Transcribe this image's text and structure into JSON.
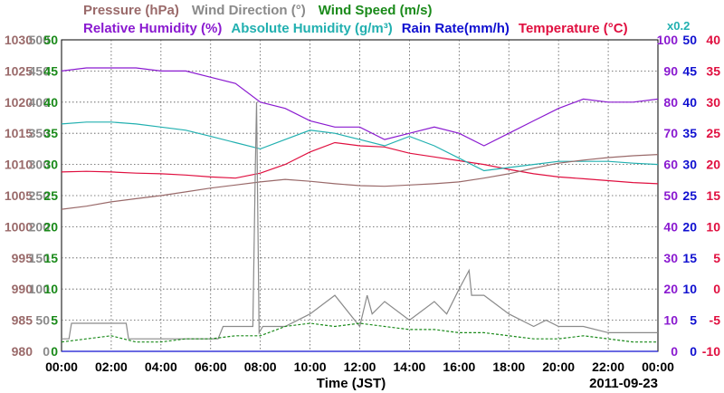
{
  "chart_data": {
    "type": "line",
    "date": "2011-09-23",
    "xlabel": "Time (JST)",
    "x_ticks": [
      "00:00",
      "02:00",
      "04:00",
      "06:00",
      "08:00",
      "10:00",
      "12:00",
      "14:00",
      "16:00",
      "18:00",
      "20:00",
      "22:00",
      "00:00"
    ],
    "x_range_hours": [
      0,
      24
    ],
    "grid": true,
    "axes_left": [
      {
        "label": "Pressure (hPa)",
        "color": "#9a6a6a",
        "range": [
          980,
          1030
        ],
        "ticks": [
          "1030",
          "1025",
          "1020",
          "1015",
          "1010",
          "1005",
          "1000",
          "995",
          "990",
          "985",
          "980"
        ]
      },
      {
        "label": "Wind Direction (°)",
        "color": "#8a8a8a",
        "range": [
          0,
          500
        ],
        "ticks": [
          "500",
          "450",
          "400",
          "350",
          "300",
          "250",
          "200",
          "150",
          "100",
          "50",
          "0"
        ]
      },
      {
        "label": "Wind Speed (m/s)",
        "color": "#1a8a1a",
        "range": [
          0,
          50
        ],
        "ticks": [
          "50",
          "45",
          "40",
          "35",
          "30",
          "25",
          "20",
          "15",
          "10",
          "5",
          "0"
        ]
      }
    ],
    "axes_right": [
      {
        "label": "Relative Humidity (%)",
        "color": "#8a1ad0",
        "range": [
          0,
          100
        ],
        "ticks": [
          "100",
          "90",
          "80",
          "70",
          "60",
          "50",
          "40",
          "30",
          "20",
          "10",
          "0"
        ]
      },
      {
        "label": "Absolute Humidity (g/m³) x0.2",
        "color": "#22b0b0",
        "range": [
          0,
          50
        ],
        "ticks": [
          "50",
          "45",
          "40",
          "35",
          "30",
          "25",
          "20",
          "15",
          "10",
          "5",
          "0"
        ]
      },
      {
        "label": "Rain Rate(mm/h)",
        "color": "#1010d0",
        "range": [
          0,
          50
        ],
        "ticks": [
          "50",
          "45",
          "40",
          "35",
          "30",
          "25",
          "20",
          "15",
          "10",
          "5",
          "0"
        ]
      },
      {
        "label": "Temperature (°C)",
        "color": "#e01040",
        "range": [
          -10,
          40
        ],
        "ticks": [
          "40",
          "35",
          "30",
          "25",
          "20",
          "15",
          "10",
          "5",
          "0",
          "-5",
          "-10"
        ]
      }
    ],
    "legend": {
      "row1": [
        {
          "text": "Pressure (hPa)",
          "color": "#9a6a6a"
        },
        {
          "text": "Wind Direction (°)",
          "color": "#8a8a8a"
        },
        {
          "text": "Wind Speed (m/s)",
          "color": "#1a8a1a"
        }
      ],
      "row2": [
        {
          "text": "Relative Humidity (%)",
          "color": "#8a1ad0"
        },
        {
          "text": "Absolute Humidity (g/m³)",
          "color": "#22b0b0"
        },
        {
          "text": "Rain Rate(mm/h)",
          "color": "#1010d0"
        },
        {
          "text": "Temperature (°C)",
          "color": "#e01040"
        }
      ],
      "suffix": {
        "text": "x0.2",
        "color": "#22b0b0"
      }
    },
    "series": [
      {
        "name": "Temperature (°C)",
        "color": "#e01040",
        "axis": "Temperature (°C)",
        "x": [
          0,
          1,
          2,
          3,
          4,
          5,
          6,
          7,
          8,
          9,
          10,
          11,
          12,
          13,
          14,
          15,
          16,
          17,
          18,
          19,
          20,
          21,
          22,
          23,
          24
        ],
        "y": [
          18.8,
          18.9,
          18.8,
          18.6,
          18.5,
          18.3,
          18.0,
          17.8,
          18.6,
          20.0,
          22.0,
          23.5,
          23.0,
          22.8,
          21.8,
          21.2,
          20.6,
          20.0,
          19.2,
          18.5,
          18.0,
          17.7,
          17.4,
          17.1,
          16.9
        ]
      },
      {
        "name": "Relative Humidity (%)",
        "color": "#8a1ad0",
        "axis": "Relative Humidity (%)",
        "x": [
          0,
          1,
          2,
          3,
          4,
          5,
          6,
          7,
          8,
          9,
          10,
          11,
          12,
          13,
          14,
          15,
          16,
          17,
          18,
          19,
          20,
          21,
          22,
          23,
          24
        ],
        "y": [
          90,
          91,
          91,
          91,
          90,
          90,
          88,
          86,
          80,
          78,
          74,
          72,
          72,
          68,
          70,
          72,
          70,
          66,
          70,
          74,
          78,
          81,
          80,
          80,
          81
        ]
      },
      {
        "name": "Absolute Humidity (g/m³)",
        "color": "#22b0b0",
        "axis": "Absolute Humidity (g/m³) x0.2",
        "x": [
          0,
          1,
          2,
          3,
          4,
          5,
          6,
          7,
          8,
          9,
          10,
          11,
          12,
          13,
          14,
          15,
          16,
          17,
          18,
          19,
          20,
          21,
          22,
          23,
          24
        ],
        "y": [
          36.5,
          36.8,
          36.8,
          36.5,
          36.0,
          35.5,
          34.5,
          33.5,
          32.5,
          34.0,
          35.5,
          35.0,
          34.0,
          33.0,
          34.5,
          33.0,
          31.0,
          29.0,
          29.5,
          30.0,
          30.5,
          30.5,
          30.5,
          30.2,
          30.0
        ]
      },
      {
        "name": "Pressure (hPa)",
        "color": "#9a6a6a",
        "axis": "Pressure (hPa)",
        "x": [
          0,
          1,
          2,
          3,
          4,
          5,
          6,
          7,
          8,
          9,
          10,
          11,
          12,
          13,
          14,
          15,
          16,
          17,
          18,
          19,
          20,
          21,
          22,
          23,
          24
        ],
        "y": [
          1002.8,
          1003.3,
          1004.0,
          1004.5,
          1005.0,
          1005.6,
          1006.2,
          1006.7,
          1007.2,
          1007.6,
          1007.3,
          1006.9,
          1006.6,
          1006.5,
          1006.7,
          1006.9,
          1007.2,
          1007.8,
          1008.5,
          1009.4,
          1010.2,
          1010.7,
          1011.1,
          1011.4,
          1011.6
        ]
      },
      {
        "name": "Wind Direction (°)",
        "color": "#8a8a8a",
        "axis": "Wind Direction (°)",
        "x": [
          0,
          0.3,
          0.4,
          2.6,
          2.7,
          6.3,
          6.5,
          7.7,
          7.8,
          7.85,
          7.95,
          8.1,
          9.0,
          10.0,
          11.0,
          12.0,
          12.3,
          12.5,
          13.0,
          14.0,
          15.0,
          15.5,
          16.0,
          16.4,
          16.5,
          17.0,
          18.0,
          19.0,
          19.5,
          20.0,
          21.0,
          22.0,
          23.0,
          24.0
        ],
        "y": [
          20,
          20,
          45,
          45,
          20,
          20,
          40,
          40,
          300,
          400,
          30,
          40,
          40,
          60,
          90,
          40,
          90,
          60,
          80,
          50,
          80,
          60,
          100,
          130,
          90,
          90,
          60,
          40,
          50,
          40,
          40,
          30,
          30,
          30
        ]
      },
      {
        "name": "Wind Speed (m/s)",
        "color": "#1a8a1a",
        "axis": "Wind Speed (m/s)",
        "x": [
          0,
          1,
          2,
          3,
          4,
          5,
          6,
          7,
          8,
          9,
          10,
          11,
          12,
          13,
          14,
          15,
          16,
          17,
          18,
          19,
          20,
          21,
          22,
          23,
          24
        ],
        "y": [
          1.5,
          2,
          2.5,
          1.5,
          1.5,
          2,
          2,
          2.5,
          2.5,
          4,
          4.5,
          4,
          4.5,
          4,
          3.5,
          3.5,
          3,
          3,
          2.5,
          2,
          2,
          2.5,
          2,
          1.5,
          1.5
        ]
      },
      {
        "name": "Rain Rate(mm/h)",
        "color": "#1010d0",
        "axis": "Rain Rate(mm/h)",
        "x": [
          0,
          24
        ],
        "y": [
          0,
          0
        ]
      }
    ],
    "footer_date": "2011-09-23"
  }
}
